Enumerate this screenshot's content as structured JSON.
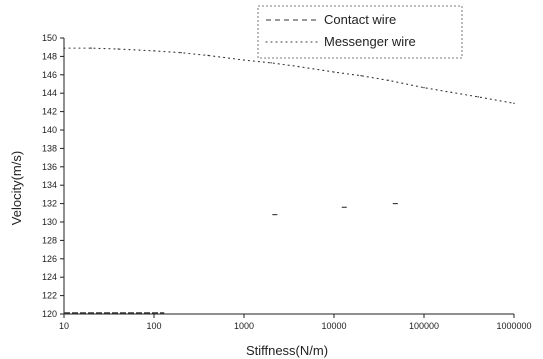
{
  "chart_data": {
    "type": "scatter",
    "xlabel": "Stiffness(N/m)",
    "ylabel": "Velocity(m/s)",
    "x_scale": "log",
    "xlim": [
      10,
      1000000
    ],
    "ylim": [
      120,
      150
    ],
    "x_ticks": [
      10,
      100,
      1000,
      10000,
      100000,
      1000000
    ],
    "x_tick_labels": [
      "10",
      "100",
      "1000",
      "10000",
      "100000",
      "1000000"
    ],
    "y_ticks": [
      120,
      122,
      124,
      126,
      128,
      130,
      132,
      134,
      136,
      138,
      140,
      142,
      144,
      146,
      148,
      150
    ],
    "y_tick_labels": [
      "120",
      "122",
      "124",
      "126",
      "128",
      "130",
      "132",
      "134",
      "136",
      "138",
      "140",
      "142",
      "144",
      "146",
      "148",
      "150"
    ],
    "grid": false,
    "legend_position": "top-right",
    "series": [
      {
        "name": "Contact wire",
        "style": "dash",
        "color": "#333333",
        "x": [
          10,
          2200,
          13000,
          48000
        ],
        "y": [
          120,
          130.8,
          131.6,
          132
        ]
      },
      {
        "name": "Messenger wire",
        "style": "dot",
        "color": "#333333",
        "x": [
          10,
          20,
          40,
          100,
          200,
          400,
          1000,
          2000,
          4000,
          10000,
          20000,
          40000,
          100000,
          200000,
          400000,
          1000000
        ],
        "y": [
          148.9,
          148.9,
          148.8,
          148.6,
          148.4,
          148.1,
          147.6,
          147.3,
          146.9,
          146.3,
          145.9,
          145.4,
          144.6,
          144.1,
          143.6,
          142.9
        ]
      }
    ]
  }
}
